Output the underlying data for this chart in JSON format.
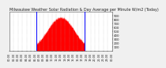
{
  "title": "Milwaukee Weather Solar Radiation & Day Average per Minute W/m2 (Today)",
  "bg_color": "#f0f0f0",
  "plot_bg": "#ffffff",
  "bar_color": "#ff0000",
  "line_color": "#0000ff",
  "grid_color": "#aaaaaa",
  "num_points": 1440,
  "peak_value": 850,
  "peak_minute": 720,
  "sigma": 190,
  "sunrise_x": 380,
  "sunset_x": 1060,
  "ylim": [
    0,
    1000
  ],
  "xlim": [
    0,
    1440
  ],
  "ytick_vals": [
    100,
    200,
    300,
    400,
    500,
    600,
    700,
    800,
    900
  ],
  "title_fontsize": 3.5,
  "tick_fontsize": 2.8
}
